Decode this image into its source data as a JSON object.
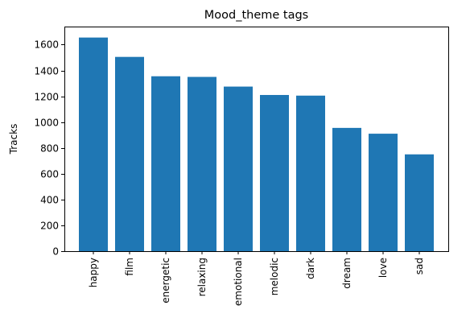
{
  "chart_data": {
    "type": "bar",
    "title": "Mood_theme tags",
    "xlabel": "",
    "ylabel": "Tracks",
    "categories": [
      "happy",
      "film",
      "energetic",
      "relaxing",
      "emotional",
      "melodic",
      "dark",
      "dream",
      "love",
      "sad"
    ],
    "values": [
      1655,
      1505,
      1355,
      1350,
      1275,
      1210,
      1205,
      955,
      910,
      750
    ],
    "ylim": [
      0,
      1740
    ],
    "yticks": [
      0,
      200,
      400,
      600,
      800,
      1000,
      1200,
      1400,
      1600
    ],
    "grid": false,
    "bar_color": "#1f77b4"
  }
}
